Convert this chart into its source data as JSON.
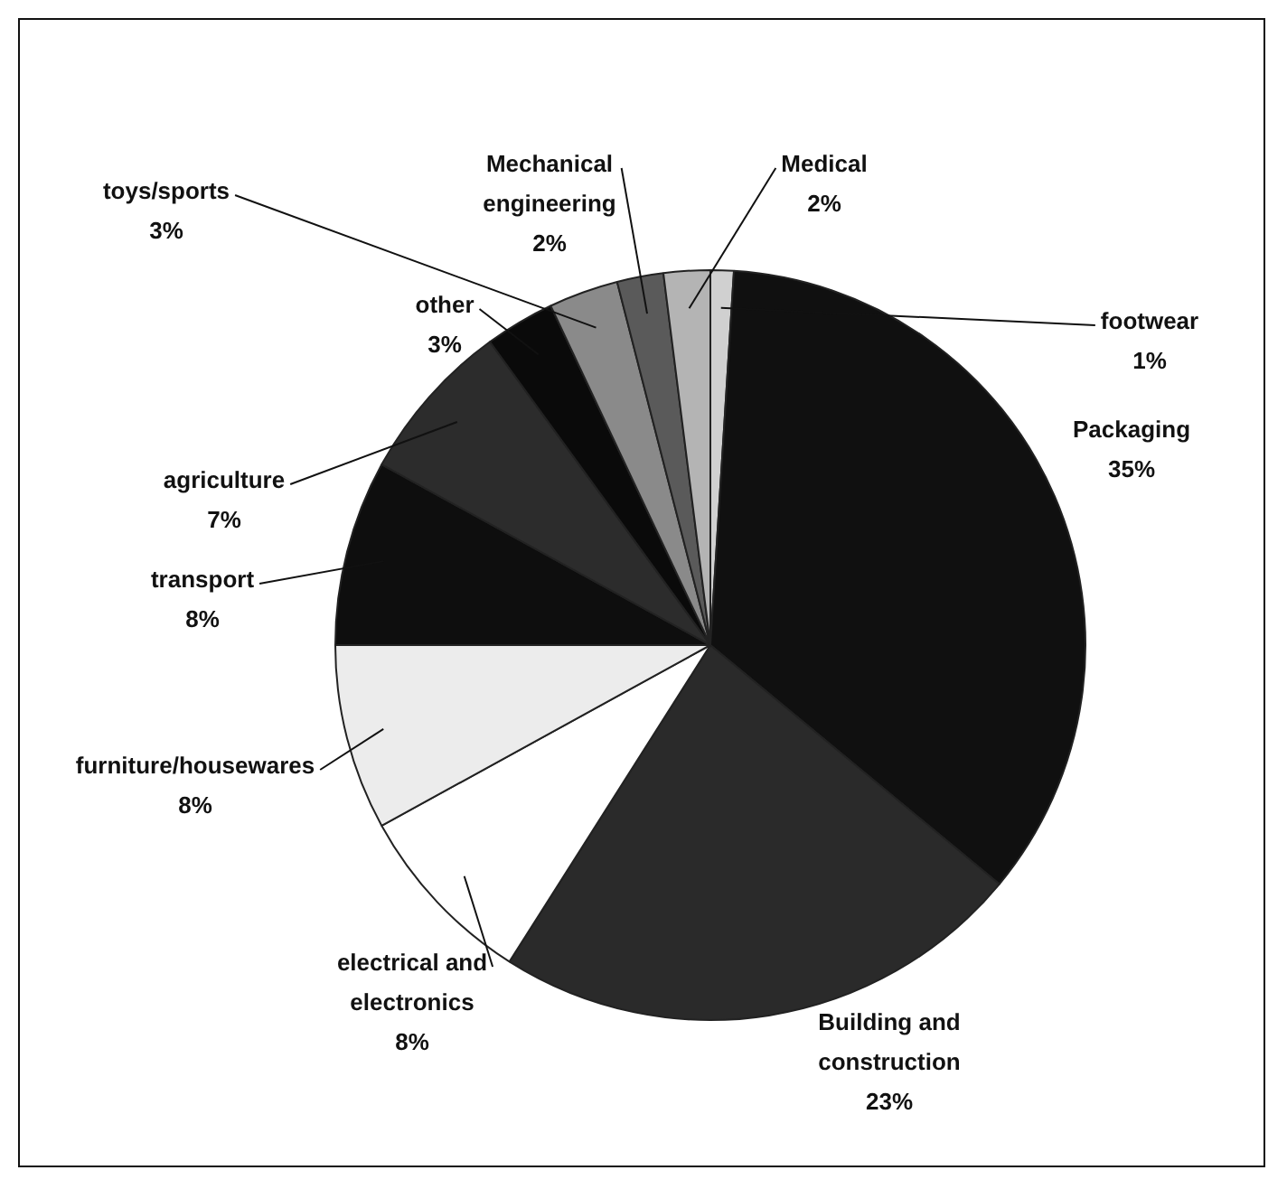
{
  "chart_data": {
    "type": "pie",
    "categories": [
      "footwear",
      "Packaging",
      "Building and construction",
      "electrical and electronics",
      "furniture/housewares",
      "transport",
      "agriculture",
      "other",
      "toys/sports",
      "Mechanical engineering",
      "Medical"
    ],
    "values": [
      1,
      35,
      23,
      8,
      8,
      8,
      7,
      3,
      3,
      2,
      2
    ],
    "value_labels": [
      "1%",
      "35%",
      "23%",
      "8%",
      "8%",
      "8%",
      "7%",
      "3%",
      "3%",
      "2%",
      "2%"
    ],
    "colors": [
      "#d0d0d0",
      "#101010",
      "#2a2a2a",
      "#ffffff",
      "#ececec",
      "#0e0e0e",
      "#2c2c2c",
      "#0a0a0a",
      "#8a8a8a",
      "#5a5a5a",
      "#b4b4b4"
    ],
    "legend": false
  }
}
